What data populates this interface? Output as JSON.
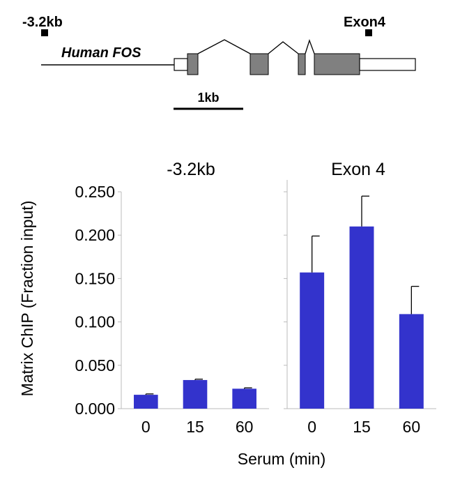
{
  "gene_diagram": {
    "gene_label": "Human FOS",
    "probe_left_label": "-3.2kb",
    "probe_right_label": "Exon4",
    "scale_label": "1kb"
  },
  "chart_data": [
    {
      "type": "bar",
      "title": "-3.2kb",
      "categories": [
        "0",
        "15",
        "60"
      ],
      "series": [
        {
          "values": [
            0.016,
            0.033,
            0.023
          ],
          "errors": [
            0.001,
            0.001,
            0.001
          ]
        }
      ],
      "ylim": [
        0,
        0.25
      ],
      "yticks": [
        "0.000",
        "0.050",
        "0.100",
        "0.150",
        "0.200",
        "0.250"
      ],
      "ylabel": "Matrix ChIP (Fraction input)",
      "bar_color": "#3333cc"
    },
    {
      "type": "bar",
      "title": "Exon 4",
      "categories": [
        "0",
        "15",
        "60"
      ],
      "series": [
        {
          "values": [
            0.157,
            0.21,
            0.109
          ],
          "errors": [
            0.042,
            0.035,
            0.032
          ]
        }
      ],
      "ylim": [
        0,
        0.25
      ],
      "bar_color": "#3333cc"
    }
  ],
  "xlabel": "Serum (min)"
}
